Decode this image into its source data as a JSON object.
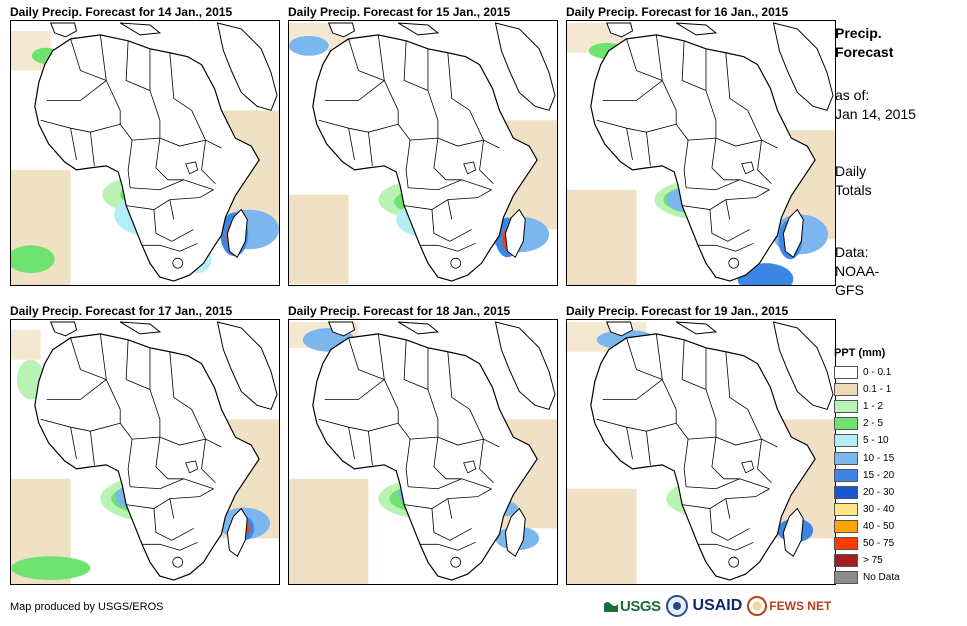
{
  "panels": [
    {
      "title": "Daily Precip. Forecast for 14 Jan., 2015"
    },
    {
      "title": "Daily Precip. Forecast for 15 Jan., 2015"
    },
    {
      "title": "Daily Precip. Forecast for 16 Jan., 2015"
    },
    {
      "title": "Daily Precip. Forecast for 17 Jan., 2015"
    },
    {
      "title": "Daily Precip. Forecast for 18 Jan., 2015"
    },
    {
      "title": "Daily Precip. Forecast for 19 Jan., 2015"
    }
  ],
  "side": {
    "title_line1": "Precip.",
    "title_line2": "Forecast",
    "asof_line1": "as of:",
    "asof_line2": "Jan 14, 2015",
    "totals_line1": "Daily",
    "totals_line2": "Totals",
    "data_line1": "Data:",
    "data_line2": "NOAA-",
    "data_line3": "GFS"
  },
  "legend": {
    "title": "PPT (mm)",
    "items": [
      {
        "label": "0 - 0.1",
        "color": "#ffffff"
      },
      {
        "label": "0.1 - 1",
        "color": "#ecd9b6"
      },
      {
        "label": "1 - 2",
        "color": "#b9f2b3"
      },
      {
        "label": "2 - 5",
        "color": "#6fe36f"
      },
      {
        "label": "5 - 10",
        "color": "#b3eef4"
      },
      {
        "label": "10 - 15",
        "color": "#7cb6ee"
      },
      {
        "label": "15 - 20",
        "color": "#3d86e6"
      },
      {
        "label": "20 - 30",
        "color": "#1b55d4"
      },
      {
        "label": "30 - 40",
        "color": "#ffe58a"
      },
      {
        "label": "40 - 50",
        "color": "#ffa500"
      },
      {
        "label": "50 - 75",
        "color": "#ff3c00"
      },
      {
        "label": "> 75",
        "color": "#a11f1f"
      },
      {
        "label": "No Data",
        "color": "#8c8c8c"
      }
    ]
  },
  "footer": {
    "credit": "Map produced by USGS/EROS",
    "logo_usgs": "USGS",
    "logo_usaid": "USAID",
    "logo_fews": "FEWS NET"
  }
}
